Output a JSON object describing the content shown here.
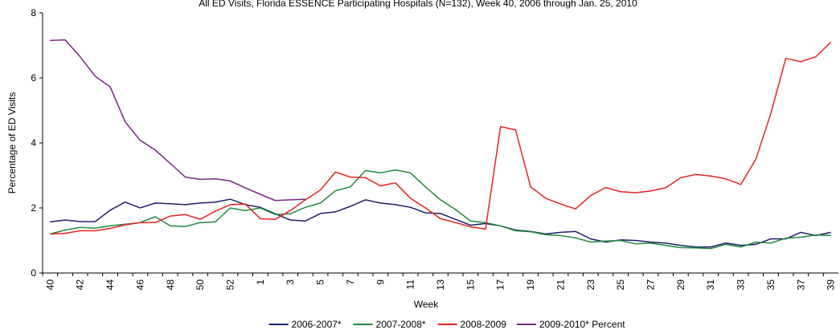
{
  "chart_data": {
    "type": "line",
    "title": "All ED Visits, Florida ESSENCE Participating Hospitals (N=132), Week 40, 2006 through Jan. 25, 2010",
    "x_label": "Week",
    "y_label": "Percentage of ED Visits",
    "categories": [
      "40",
      null,
      "42",
      null,
      "44",
      null,
      "46",
      null,
      "48",
      null,
      "50",
      null,
      "52",
      null,
      "1",
      null,
      "3",
      null,
      "5",
      null,
      "7",
      null,
      "9",
      null,
      "11",
      null,
      "13",
      null,
      "15",
      null,
      "17",
      null,
      "19",
      null,
      "21",
      null,
      "23",
      null,
      "25",
      null,
      "27",
      null,
      "29",
      null,
      "31",
      null,
      "33",
      null,
      "35",
      null,
      "37",
      null,
      "39"
    ],
    "ylim": [
      0,
      8
    ],
    "yticks": [
      0,
      2,
      4,
      6,
      8
    ],
    "grid": false,
    "legend": "bottom",
    "series": [
      {
        "name": "2006-2007*",
        "color": "#1f1f6e",
        "values": [
          1.57,
          1.63,
          1.58,
          1.58,
          1.93,
          2.18,
          2.0,
          2.15,
          2.13,
          2.1,
          2.15,
          2.18,
          2.27,
          2.1,
          2.02,
          1.82,
          1.63,
          1.6,
          1.83,
          1.88,
          2.05,
          2.25,
          2.15,
          2.1,
          2.02,
          1.85,
          1.83,
          1.65,
          1.47,
          1.52,
          1.45,
          1.32,
          1.28,
          1.2,
          1.25,
          1.28,
          1.05,
          0.95,
          1.02,
          1.0,
          0.95,
          0.92,
          0.85,
          0.8,
          0.8,
          0.92,
          0.85,
          0.88,
          1.05,
          1.05,
          1.25,
          1.15,
          1.25
        ]
      },
      {
        "name": "2007-2008*",
        "color": "#1e8a3c",
        "values": [
          1.2,
          1.32,
          1.4,
          1.38,
          1.45,
          1.5,
          1.55,
          1.73,
          1.45,
          1.43,
          1.55,
          1.57,
          2.0,
          1.92,
          2.0,
          1.8,
          1.82,
          2.02,
          2.15,
          2.53,
          2.65,
          3.15,
          3.08,
          3.17,
          3.08,
          2.65,
          2.25,
          1.95,
          1.6,
          1.55,
          1.45,
          1.3,
          1.27,
          1.18,
          1.15,
          1.08,
          0.95,
          0.98,
          1.0,
          0.9,
          0.92,
          0.85,
          0.78,
          0.77,
          0.75,
          0.88,
          0.8,
          0.95,
          0.92,
          1.07,
          1.1,
          1.17,
          1.15
        ]
      },
      {
        "name": "2008-2009",
        "color": "#e8231f",
        "values": [
          1.2,
          1.22,
          1.3,
          1.3,
          1.37,
          1.48,
          1.55,
          1.55,
          1.75,
          1.8,
          1.65,
          1.9,
          2.1,
          2.12,
          1.67,
          1.65,
          1.92,
          2.25,
          2.55,
          3.1,
          2.95,
          2.93,
          2.68,
          2.77,
          2.3,
          2.0,
          1.67,
          1.55,
          1.42,
          1.35,
          4.5,
          4.4,
          2.65,
          2.3,
          2.12,
          1.97,
          2.38,
          2.63,
          2.5,
          2.47,
          2.52,
          2.62,
          2.93,
          3.03,
          2.98,
          2.9,
          2.72,
          3.5,
          4.9,
          6.6,
          6.5,
          6.65,
          7.1
        ]
      },
      {
        "name": "2009-2010* Percent",
        "color": "#7a2585",
        "values": [
          7.15,
          7.17,
          6.65,
          6.05,
          5.72,
          4.65,
          4.08,
          3.78,
          3.37,
          2.95,
          2.88,
          2.9,
          2.83,
          2.62,
          2.42,
          2.23,
          2.25,
          2.27,
          null,
          null,
          null,
          null,
          null,
          null,
          null,
          null,
          null,
          null,
          null,
          null,
          null,
          null,
          null,
          null,
          null,
          null,
          null,
          null,
          null,
          null,
          null,
          null,
          null,
          null,
          null,
          null,
          null,
          null,
          null,
          null,
          null,
          null,
          null
        ]
      }
    ]
  }
}
